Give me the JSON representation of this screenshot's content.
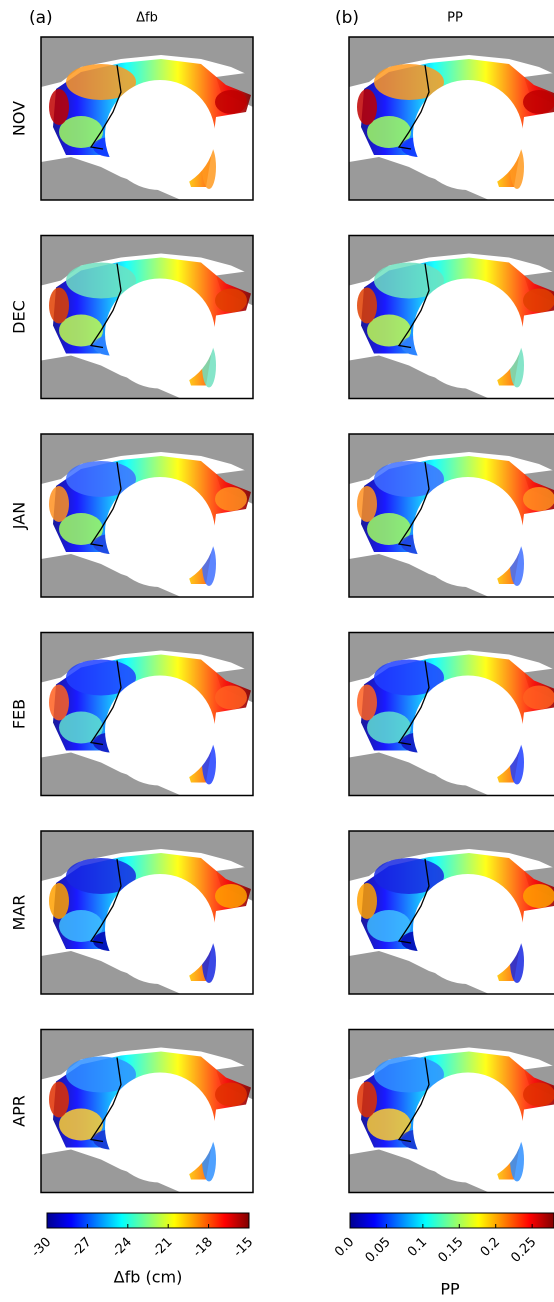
{
  "columns": [
    {
      "label": "(a)",
      "title": "Δfb"
    },
    {
      "label": "(b)",
      "title": "PP"
    }
  ],
  "rows": [
    "NOV",
    "DEC",
    "JAN",
    "FEB",
    "MAR",
    "APR"
  ],
  "colorbars": [
    {
      "label": "Δfb (cm)",
      "lim": [
        -30,
        -15
      ],
      "ticks": [
        -30,
        -27,
        -24,
        -21,
        -18,
        -15
      ]
    },
    {
      "label": "PP",
      "lim": [
        0,
        0.28
      ],
      "ticks": [
        {
          "value": 0,
          "label": "0.0"
        },
        0.05,
        0.1,
        0.15,
        0.2,
        0.25
      ]
    }
  ]
}
